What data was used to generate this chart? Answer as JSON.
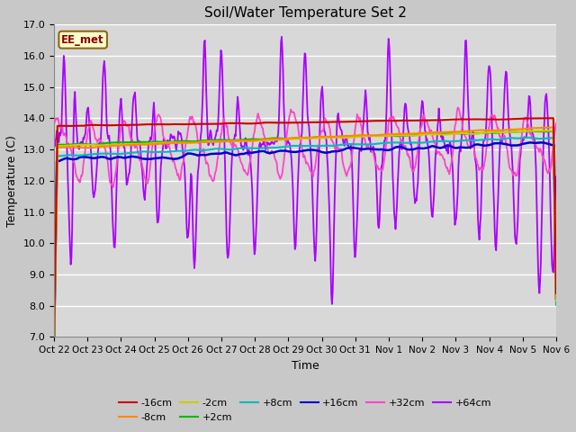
{
  "title": "Soil/Water Temperature Set 2",
  "xlabel": "Time",
  "ylabel": "Temperature (C)",
  "ylim": [
    7.0,
    17.0
  ],
  "yticks": [
    7.0,
    8.0,
    9.0,
    10.0,
    11.0,
    12.0,
    13.0,
    14.0,
    15.0,
    16.0,
    17.0
  ],
  "annotation_label": "EE_met",
  "fig_bg_color": "#c8c8c8",
  "plot_bg_color": "#d8d8d8",
  "series": {
    "-16cm": {
      "color": "#cc0000"
    },
    "-8cm": {
      "color": "#ff8800"
    },
    "-2cm": {
      "color": "#cccc00"
    },
    "+2cm": {
      "color": "#00bb00"
    },
    "+8cm": {
      "color": "#00bbbb"
    },
    "+16cm": {
      "color": "#0000cc"
    },
    "+32cm": {
      "color": "#ff44cc"
    },
    "+64cm": {
      "color": "#aa00ff"
    }
  },
  "n_points": 720,
  "x_start": 0,
  "x_end": 15,
  "xtick_positions": [
    0,
    1,
    2,
    3,
    4,
    5,
    6,
    7,
    8,
    9,
    10,
    11,
    12,
    13,
    14,
    15
  ],
  "xtick_labels": [
    "Oct 22",
    "Oct 23",
    "Oct 24",
    "Oct 25",
    "Oct 26",
    "Oct 27",
    "Oct 28",
    "Oct 29",
    "Oct 30",
    "Oct 31",
    "Nov 1",
    "Nov 2",
    "Nov 3",
    "Nov 4",
    "Nov 5",
    "Nov 6"
  ],
  "legend_order": [
    "-16cm",
    "-8cm",
    "-2cm",
    "+2cm",
    "+8cm",
    "+16cm",
    "+32cm",
    "+64cm"
  ]
}
